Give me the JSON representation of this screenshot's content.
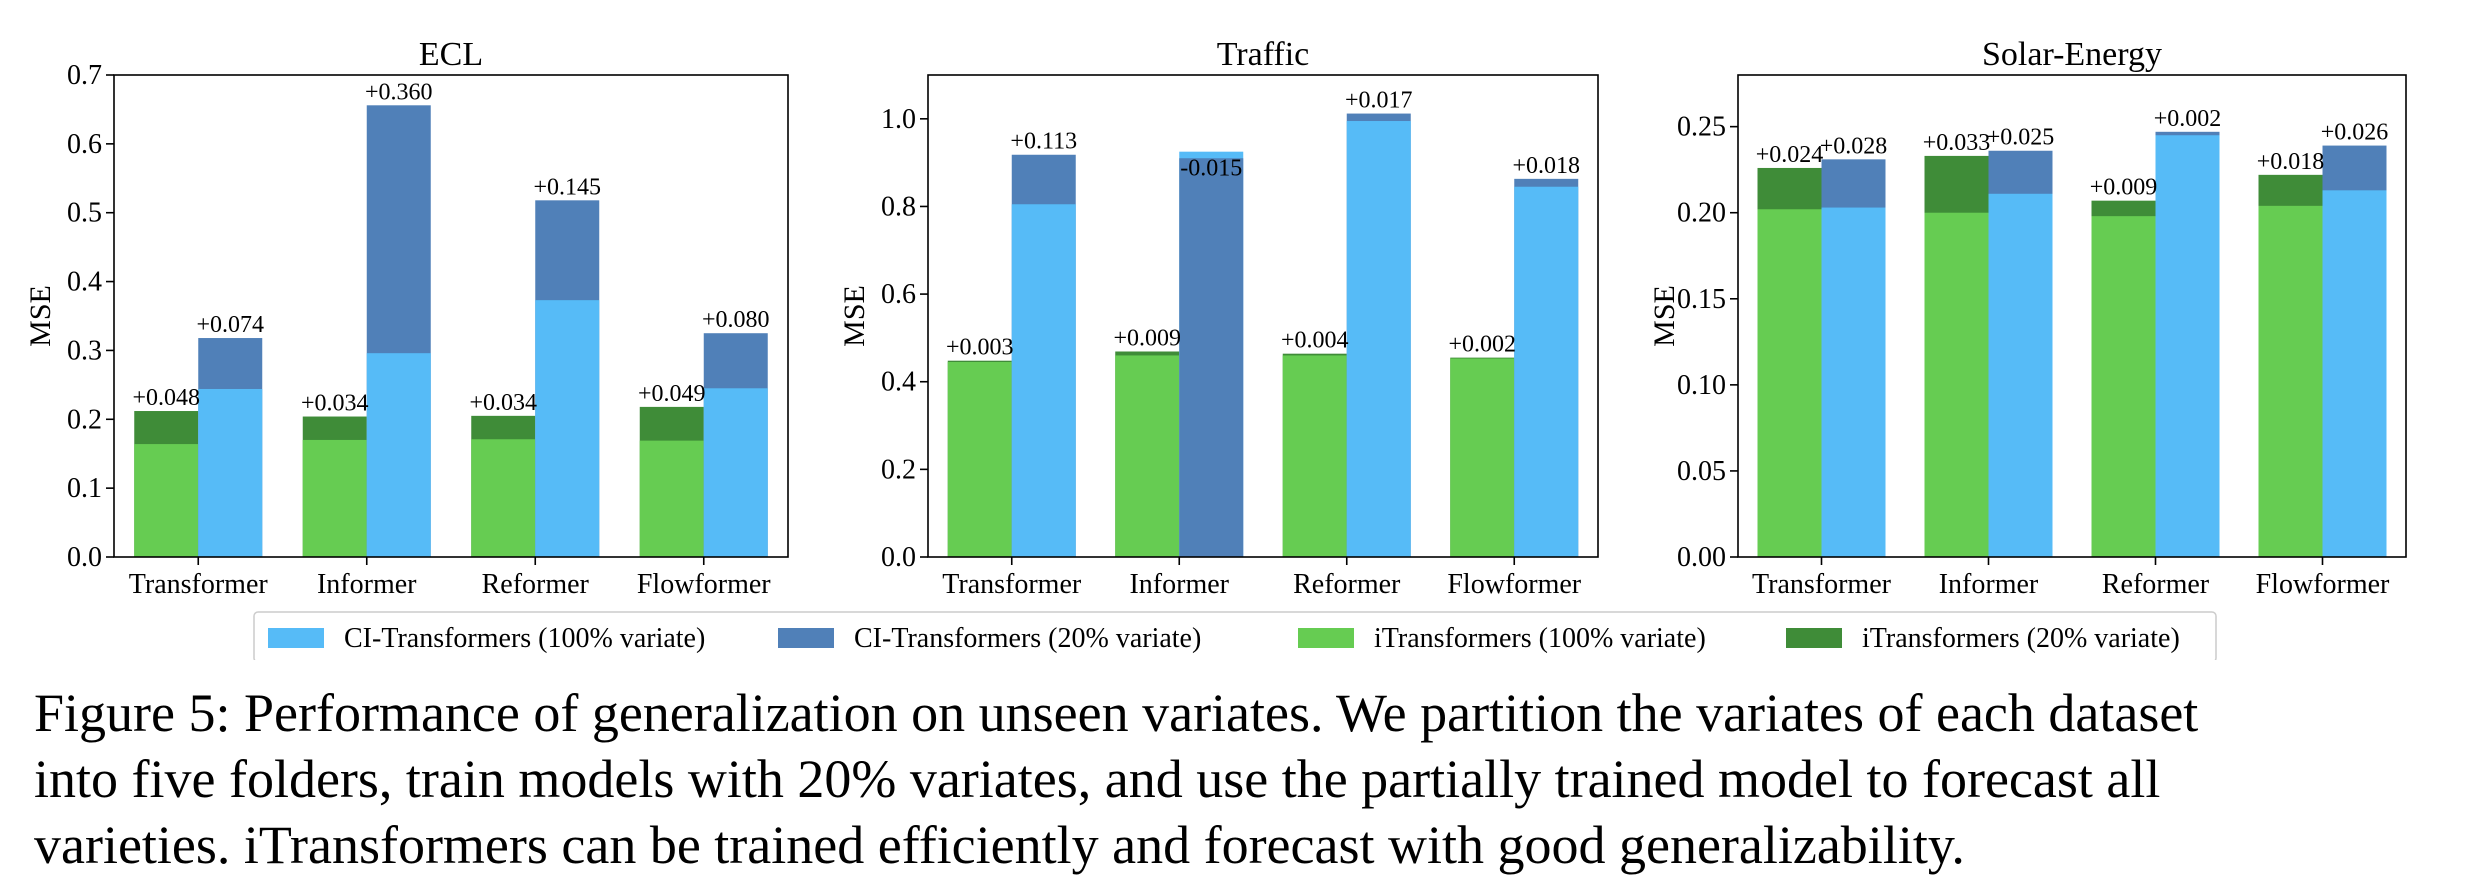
{
  "chart_data": [
    {
      "type": "bar",
      "title": "ECL",
      "ylabel": "MSE",
      "ylim": [
        0,
        0.7
      ],
      "yticks": [
        "0.0",
        "0.1",
        "0.2",
        "0.3",
        "0.4",
        "0.5",
        "0.6",
        "0.7"
      ],
      "categories": [
        "Transformer",
        "Informer",
        "Reformer",
        "Flowformer"
      ],
      "series": [
        {
          "name": "iTransformers (100% variate)",
          "values": [
            0.164,
            0.17,
            0.171,
            0.169
          ]
        },
        {
          "name": "iTransformers (20% variate)",
          "values": [
            0.212,
            0.204,
            0.205,
            0.218
          ]
        },
        {
          "name": "CI-Transformers (100% variate)",
          "values": [
            0.244,
            0.296,
            0.373,
            0.245
          ]
        },
        {
          "name": "CI-Transformers (20% variate)",
          "values": [
            0.318,
            0.656,
            0.518,
            0.325
          ]
        }
      ],
      "i_labels": [
        "+0.048",
        "+0.034",
        "+0.034",
        "+0.049"
      ],
      "ci_labels": [
        "+0.074",
        "+0.360",
        "+0.145",
        "+0.080"
      ]
    },
    {
      "type": "bar",
      "title": "Traffic",
      "ylabel": "MSE",
      "ylim": [
        0,
        1.1
      ],
      "yticks": [
        "0.0",
        "0.2",
        "0.4",
        "0.6",
        "0.8",
        "1.0"
      ],
      "categories": [
        "Transformer",
        "Informer",
        "Reformer",
        "Flowformer"
      ],
      "series": [
        {
          "name": "iTransformers (100% variate)",
          "values": [
            0.445,
            0.46,
            0.46,
            0.453
          ]
        },
        {
          "name": "iTransformers (20% variate)",
          "values": [
            0.448,
            0.469,
            0.464,
            0.455
          ]
        },
        {
          "name": "CI-Transformers (100% variate)",
          "values": [
            0.805,
            0.925,
            0.995,
            0.845
          ]
        },
        {
          "name": "CI-Transformers (20% variate)",
          "values": [
            0.918,
            0.91,
            1.012,
            0.863
          ]
        }
      ],
      "i_labels": [
        "+0.003",
        "+0.009",
        "+0.004",
        "+0.002"
      ],
      "ci_labels": [
        "+0.113",
        "-0.015",
        "+0.017",
        "+0.018"
      ]
    },
    {
      "type": "bar",
      "title": "Solar-Energy",
      "ylabel": "MSE",
      "ylim": [
        0,
        0.28
      ],
      "yticks": [
        "0.00",
        "0.05",
        "0.10",
        "0.15",
        "0.20",
        "0.25"
      ],
      "categories": [
        "Transformer",
        "Informer",
        "Reformer",
        "Flowformer"
      ],
      "series": [
        {
          "name": "iTransformers (100% variate)",
          "values": [
            0.202,
            0.2,
            0.198,
            0.204
          ]
        },
        {
          "name": "iTransformers (20% variate)",
          "values": [
            0.226,
            0.233,
            0.207,
            0.222
          ]
        },
        {
          "name": "CI-Transformers (100% variate)",
          "values": [
            0.203,
            0.211,
            0.245,
            0.213
          ]
        },
        {
          "name": "CI-Transformers (20% variate)",
          "values": [
            0.231,
            0.236,
            0.247,
            0.239
          ]
        }
      ],
      "i_labels": [
        "+0.024",
        "+0.033",
        "+0.009",
        "+0.018"
      ],
      "ci_labels": [
        "+0.028",
        "+0.025",
        "+0.002",
        "+0.026"
      ]
    }
  ],
  "legend": {
    "items": [
      {
        "label": "CI-Transformers (100% variate)",
        "color": "#56BBF7"
      },
      {
        "label": "CI-Transformers (20% variate)",
        "color": "#5080B8"
      },
      {
        "label": "iTransformers (100% variate)",
        "color": "#66CC52"
      },
      {
        "label": "iTransformers (20% variate)",
        "color": "#3F8C38"
      }
    ]
  },
  "colors": {
    "ci_full": "#56BBF7",
    "ci_partial": "#5080B8",
    "i_full": "#66CC52",
    "i_partial": "#3F8C38"
  },
  "caption": {
    "lines": [
      "Figure 5: Performance of generalization on unseen variates. We partition the variates of each dataset",
      "into five folders, train models with 20% variates, and use the partially trained model to forecast all",
      "varieties. iTransformers can be trained efficiently and forecast with good generalizability."
    ]
  }
}
